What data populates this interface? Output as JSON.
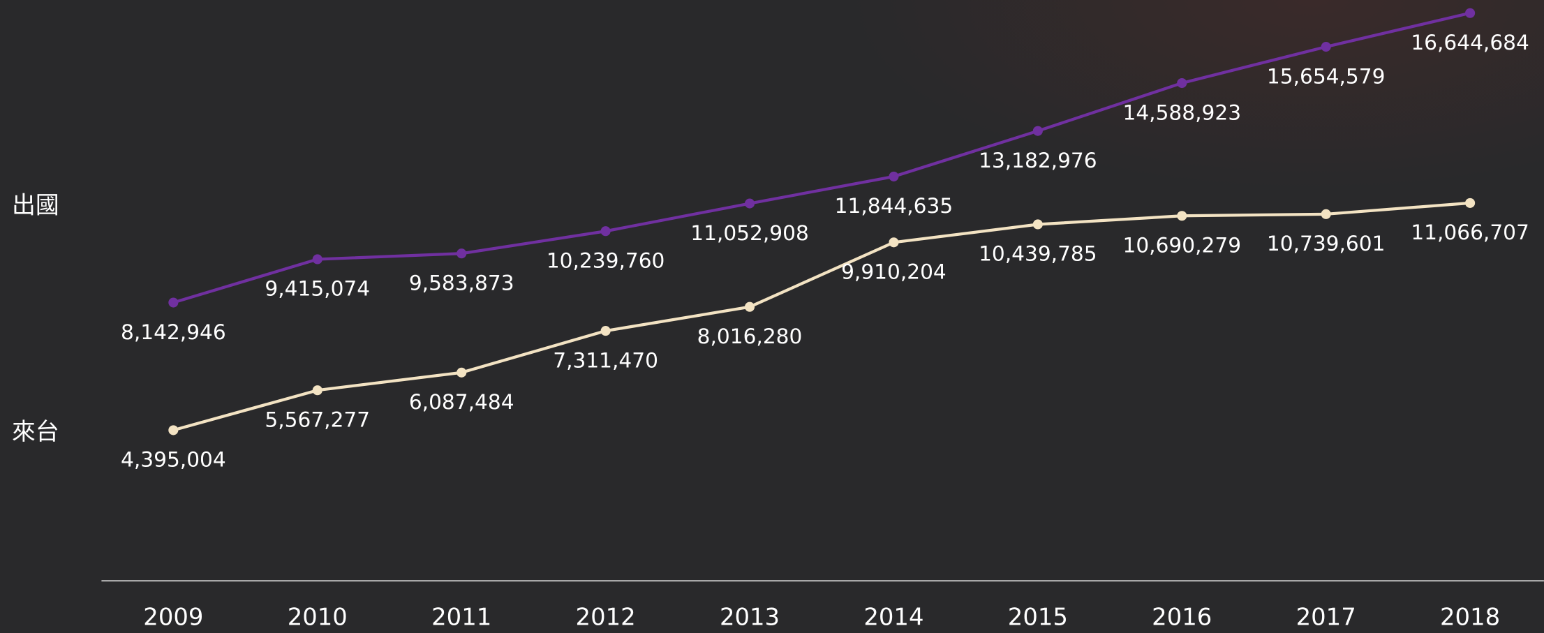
{
  "chart_data": {
    "type": "line",
    "categories": [
      "2009",
      "2010",
      "2011",
      "2012",
      "2013",
      "2014",
      "2015",
      "2016",
      "2017",
      "2018"
    ],
    "series": [
      {
        "name": "出國",
        "color": "#7030a0",
        "values": [
          8142946,
          9415074,
          9583873,
          10239760,
          11052908,
          11844635,
          13182976,
          14588923,
          15654579,
          16644684
        ],
        "value_labels": [
          "8,142,946",
          "9,415,074",
          "9,583,873",
          "10,239,760",
          "11,052,908",
          "11,844,635",
          "13,182,976",
          "14,588,923",
          "15,654,579",
          "16,644,684"
        ]
      },
      {
        "name": "來台",
        "color": "#f3e3c3",
        "values": [
          4395004,
          5567277,
          6087484,
          7311470,
          8016280,
          9910204,
          10439785,
          10690279,
          10739601,
          11066707
        ],
        "value_labels": [
          "4,395,004",
          "5,567,277",
          "6,087,484",
          "7,311,470",
          "8,016,280",
          "9,910,204",
          "10,439,785",
          "10,690,279",
          "10,739,601",
          "11,066,707"
        ]
      }
    ],
    "ylim": [
      0,
      17000000
    ]
  }
}
